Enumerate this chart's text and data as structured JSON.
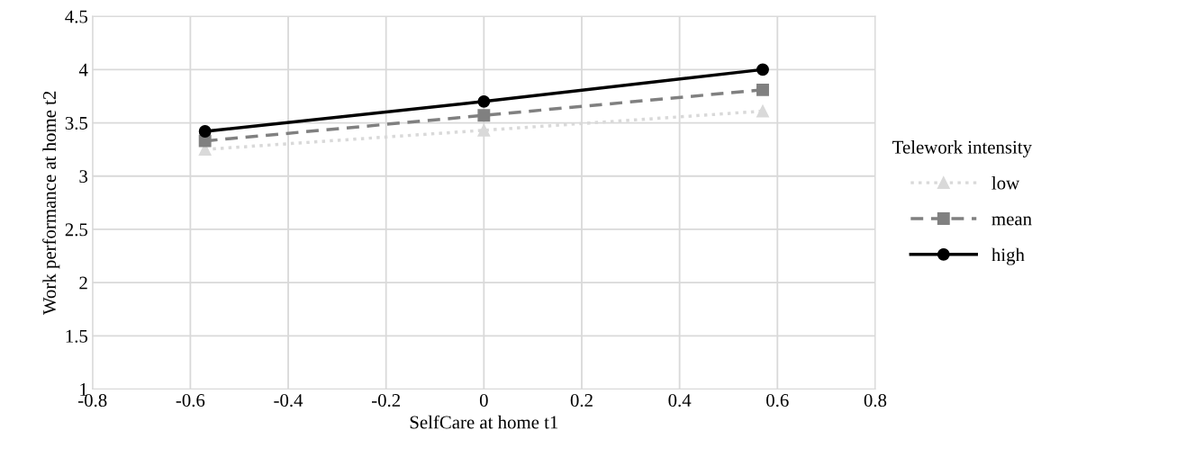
{
  "chart_data": {
    "type": "line",
    "xlabel": "SelfCare at home t1",
    "ylabel": "Work performance at home t2",
    "legend_title": "Telework intensity",
    "x": [
      -0.57,
      0,
      0.57
    ],
    "series": [
      {
        "name": "low",
        "color": "#d9d9d9",
        "values": [
          3.25,
          3.43,
          3.61
        ],
        "marker": "triangle",
        "line_style": "dotted"
      },
      {
        "name": "mean",
        "color": "#808080",
        "values": [
          3.33,
          3.57,
          3.81
        ],
        "marker": "square",
        "line_style": "dashed"
      },
      {
        "name": "high",
        "color": "#000000",
        "values": [
          3.42,
          3.7,
          4.0
        ],
        "marker": "circle",
        "line_style": "solid"
      }
    ],
    "xlim": [
      -0.8,
      0.8
    ],
    "xticks": [
      -0.8,
      -0.6,
      -0.4,
      -0.2,
      0,
      0.2,
      0.4,
      0.6,
      0.8
    ],
    "ylim": [
      1,
      4.5
    ],
    "yticks": [
      1,
      1.5,
      2,
      2.5,
      3,
      3.5,
      4,
      4.5
    ],
    "grid": true,
    "legend": "right"
  }
}
